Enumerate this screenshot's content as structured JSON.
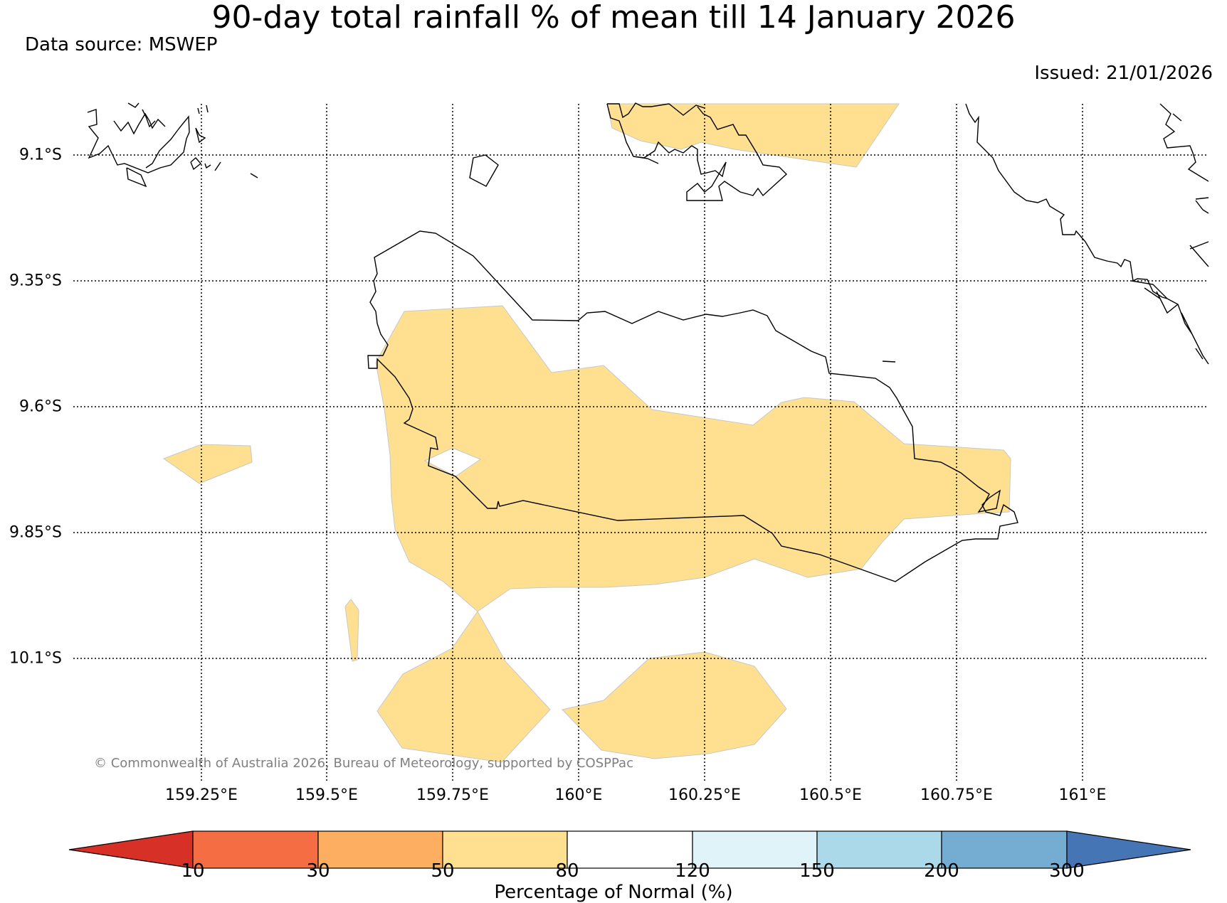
{
  "title": "90-day total rainfall % of mean till 14 January 2026",
  "data_source": "Data source: MSWEP",
  "issued": "Issued: 21/01/2026",
  "copyright": "© Commonwealth of Australia 2026, Bureau of Meteorology, supported by COSPPac",
  "lat_labels": [
    "9.1°S",
    "9.35°S",
    "9.6°S",
    "9.85°S",
    "10.1°S"
  ],
  "lon_labels": [
    "159.25°E",
    "159.5°E",
    "159.75°E",
    "160°E",
    "160.25°E",
    "160.5°E",
    "160.75°E",
    "161°E"
  ],
  "colorbar": {
    "title": "Percentage of Normal (%)",
    "ticks": [
      "10",
      "30",
      "50",
      "80",
      "120",
      "150",
      "200",
      "300"
    ],
    "colors": {
      "below_10": "#d73027",
      "10_30": "#f46d43",
      "30_50": "#fdae61",
      "50_80": "#fee090",
      "80_120": "#ffffff",
      "120_150": "#e0f3f8",
      "150_200": "#abd9e9",
      "200_300": "#74add1",
      "above_300": "#4575b4"
    }
  },
  "map": {
    "shaded_category": "50–80 % of normal",
    "fill_color": "#fee090",
    "coast_color": "#000000",
    "grid_color": "#000000"
  }
}
